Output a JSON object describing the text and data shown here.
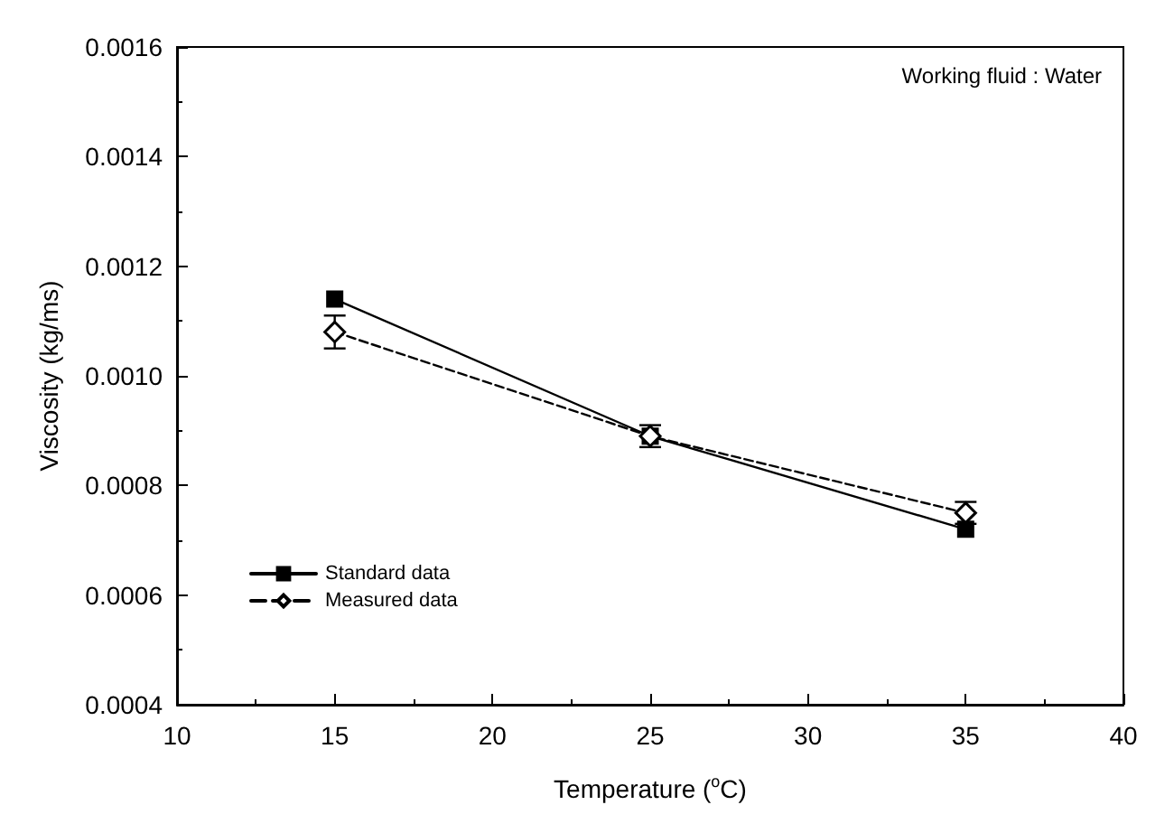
{
  "chart_data": {
    "type": "line",
    "xlabel": "Temperature ($^{o}$C)",
    "ylabel": "Viscosity (kg/ms)",
    "x": [
      15,
      25,
      35
    ],
    "series": [
      {
        "name": "Standard data",
        "color": "#000000",
        "values": [
          0.00114,
          0.00089,
          0.00072
        ],
        "marker": "square",
        "line_style": "solid"
      },
      {
        "name": "Measured data",
        "color": "#000000",
        "values": [
          0.00108,
          0.00089,
          0.00075
        ],
        "errors": [
          3e-05,
          2e-05,
          2e-05
        ],
        "marker": "diamond",
        "line_style": "dashed"
      }
    ],
    "xlim": [
      10,
      40
    ],
    "xticks": [
      10,
      15,
      20,
      25,
      30,
      35,
      40
    ],
    "ylim": [
      0.0004,
      0.0016
    ],
    "yticks": [
      0.0004,
      0.0006,
      0.0008,
      {
        "value": 0.001,
        "label": "0.0010"
      },
      0.0012,
      0.0014,
      0.0016
    ],
    "annotations": [
      "Working fluid : Water"
    ],
    "legend": "bottom left",
    "grid": false
  }
}
